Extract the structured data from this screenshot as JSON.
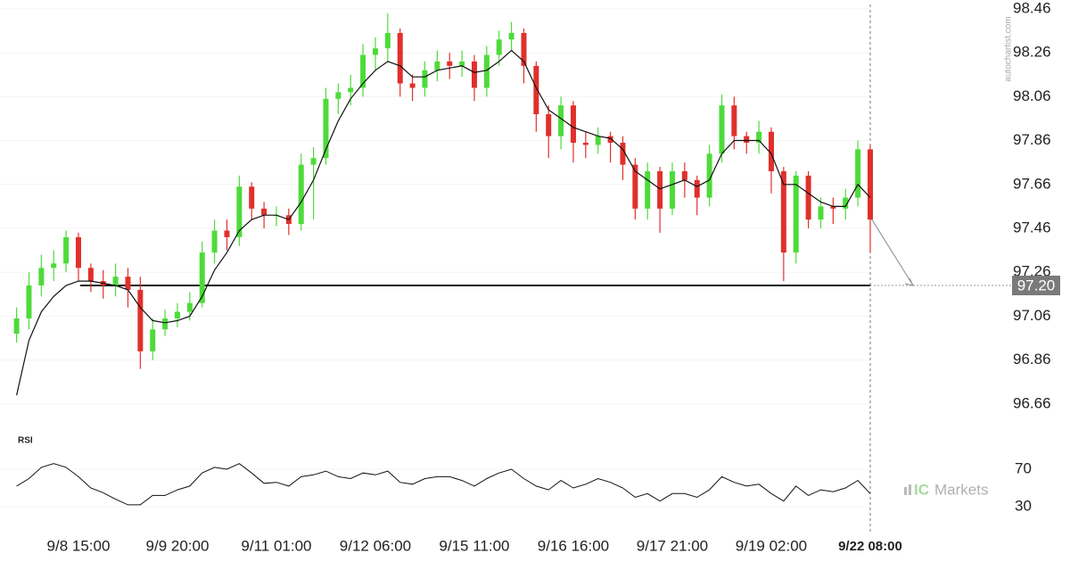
{
  "chart_data": {
    "type": "candlestick",
    "categories": [
      null,
      null,
      null,
      null,
      null,
      "9/8 15:00",
      null,
      null,
      null,
      null,
      null,
      null,
      null,
      "9/9 20:00",
      null,
      null,
      null,
      null,
      null,
      null,
      null,
      "9/11 01:00",
      null,
      null,
      null,
      null,
      null,
      null,
      null,
      "9/12 06:00",
      null,
      null,
      null,
      null,
      null,
      null,
      null,
      "9/15 11:00",
      null,
      null,
      null,
      null,
      null,
      null,
      null,
      "9/16 16:00",
      null,
      null,
      null,
      null,
      null,
      null,
      null,
      "9/17 21:00",
      null,
      null,
      null,
      null,
      null,
      null,
      null,
      "9/19 02:00",
      null,
      null,
      null,
      null,
      null,
      null,
      null,
      "9/22 08:00"
    ],
    "open": [
      96.98,
      97.05,
      97.2,
      97.28,
      97.3,
      97.42,
      97.28,
      97.22,
      97.2,
      97.24,
      97.18,
      96.9,
      97.0,
      97.05,
      97.08,
      97.12,
      97.35,
      97.45,
      97.42,
      97.65,
      97.55,
      97.52,
      97.52,
      97.48,
      97.75,
      97.78,
      98.05,
      98.08,
      98.1,
      98.25,
      98.28,
      98.35,
      98.12,
      98.1,
      98.18,
      98.22,
      98.2,
      98.22,
      98.1,
      98.25,
      98.32,
      98.35,
      98.2,
      97.98,
      97.88,
      98.02,
      97.85,
      97.84,
      97.88,
      97.85,
      97.75,
      97.55,
      97.72,
      97.55,
      97.72,
      97.68,
      97.6,
      97.8,
      98.02,
      97.88,
      97.85,
      97.9,
      97.72,
      97.35,
      97.7,
      97.5,
      97.56,
      97.55,
      97.6,
      97.82
    ],
    "high": [
      97.1,
      97.26,
      97.34,
      97.36,
      97.45,
      97.44,
      97.3,
      97.27,
      97.3,
      97.28,
      97.24,
      97.05,
      97.09,
      97.12,
      97.17,
      97.4,
      97.5,
      97.5,
      97.7,
      97.67,
      97.58,
      97.56,
      97.55,
      97.8,
      97.83,
      98.1,
      98.12,
      98.16,
      98.3,
      98.33,
      98.44,
      98.37,
      98.16,
      98.22,
      98.27,
      98.26,
      98.27,
      98.25,
      98.29,
      98.36,
      98.4,
      98.37,
      98.22,
      98.02,
      98.06,
      98.04,
      97.9,
      97.92,
      97.9,
      97.88,
      97.78,
      97.76,
      97.74,
      97.76,
      97.76,
      97.7,
      97.84,
      98.07,
      98.06,
      97.9,
      97.95,
      97.92,
      97.74,
      97.72,
      97.72,
      97.6,
      97.6,
      97.64,
      97.86,
      97.84
    ],
    "low": [
      96.94,
      97.0,
      97.15,
      97.22,
      97.26,
      97.22,
      97.17,
      97.14,
      97.15,
      97.1,
      96.82,
      96.86,
      96.97,
      97.01,
      97.04,
      97.1,
      97.3,
      97.36,
      97.38,
      97.5,
      97.46,
      97.47,
      97.43,
      97.45,
      97.5,
      97.75,
      97.98,
      98.02,
      98.06,
      98.18,
      98.22,
      98.06,
      98.04,
      98.06,
      98.13,
      98.14,
      98.15,
      98.04,
      98.06,
      98.2,
      98.27,
      98.12,
      97.9,
      97.78,
      97.82,
      97.76,
      97.78,
      97.8,
      97.76,
      97.68,
      97.5,
      97.5,
      97.44,
      97.52,
      97.6,
      97.52,
      97.56,
      97.76,
      97.82,
      97.8,
      97.8,
      97.62,
      97.22,
      97.3,
      97.46,
      97.46,
      97.48,
      97.5,
      97.56,
      97.35
    ],
    "close": [
      97.05,
      97.2,
      97.28,
      97.3,
      97.42,
      97.28,
      97.22,
      97.2,
      97.24,
      97.18,
      96.9,
      97.0,
      97.05,
      97.08,
      97.12,
      97.35,
      97.45,
      97.42,
      97.65,
      97.55,
      97.52,
      97.52,
      97.48,
      97.75,
      97.78,
      98.05,
      98.08,
      98.1,
      98.25,
      98.28,
      98.35,
      98.12,
      98.1,
      98.18,
      98.22,
      98.2,
      98.22,
      98.1,
      98.25,
      98.32,
      98.35,
      98.2,
      97.98,
      97.88,
      98.02,
      97.85,
      97.84,
      97.88,
      97.85,
      97.75,
      97.55,
      97.72,
      97.55,
      97.72,
      97.68,
      97.6,
      97.8,
      98.02,
      97.88,
      97.85,
      97.9,
      97.72,
      97.35,
      97.7,
      97.5,
      97.56,
      97.55,
      97.6,
      97.82,
      97.5
    ],
    "ma": [
      96.7,
      96.95,
      97.08,
      97.15,
      97.2,
      97.22,
      97.22,
      97.21,
      97.2,
      97.18,
      97.1,
      97.04,
      97.03,
      97.04,
      97.06,
      97.15,
      97.27,
      97.35,
      97.45,
      97.5,
      97.52,
      97.52,
      97.5,
      97.58,
      97.68,
      97.82,
      97.95,
      98.05,
      98.12,
      98.18,
      98.22,
      98.2,
      98.15,
      98.15,
      98.18,
      98.19,
      98.2,
      98.17,
      98.18,
      98.22,
      98.27,
      98.22,
      98.1,
      98.0,
      97.96,
      97.92,
      97.9,
      97.88,
      97.87,
      97.82,
      97.72,
      97.68,
      97.64,
      97.66,
      97.68,
      97.65,
      97.68,
      97.8,
      97.86,
      97.86,
      97.86,
      97.8,
      97.66,
      97.66,
      97.62,
      97.58,
      97.56,
      97.56,
      97.66,
      97.6
    ],
    "up_color": "#4ddb3a",
    "down_color": "#e0302c",
    "ma_color": "#111111",
    "ylim": [
      96.55,
      98.5
    ],
    "yticks": [
      96.66,
      96.86,
      97.06,
      97.26,
      97.46,
      97.66,
      97.86,
      98.06,
      98.26,
      98.46
    ],
    "target": {
      "value": 97.2,
      "label": "97.20"
    },
    "rsi": {
      "title": "RSI",
      "ylim": [
        20,
        100
      ],
      "yticks": [
        70,
        30
      ],
      "values": [
        52,
        60,
        72,
        76,
        72,
        62,
        50,
        45,
        38,
        32,
        32,
        42,
        42,
        48,
        52,
        66,
        72,
        70,
        76,
        66,
        55,
        56,
        52,
        62,
        64,
        68,
        62,
        60,
        66,
        64,
        68,
        56,
        54,
        60,
        62,
        62,
        58,
        52,
        60,
        66,
        70,
        60,
        52,
        48,
        58,
        50,
        54,
        60,
        56,
        50,
        40,
        44,
        36,
        44,
        44,
        40,
        48,
        62,
        56,
        52,
        54,
        44,
        36,
        52,
        42,
        48,
        46,
        50,
        58,
        44
      ]
    },
    "watermark": "autochartist.com",
    "brand_prefix": "IC",
    "brand_name": "Markets"
  }
}
